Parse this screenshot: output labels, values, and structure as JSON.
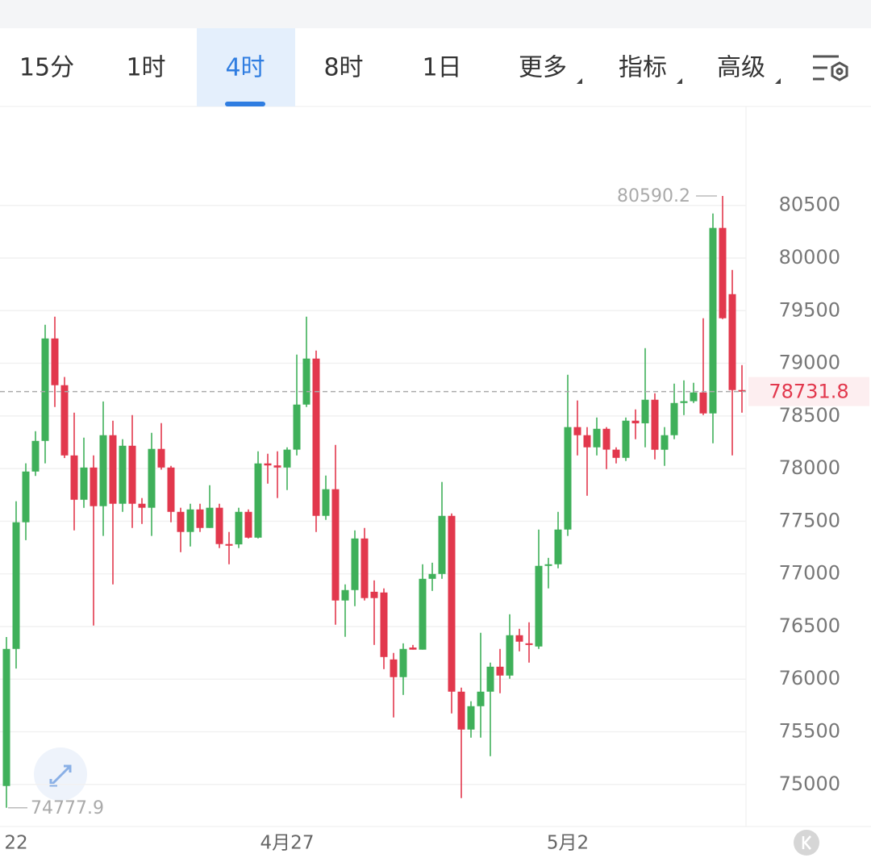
{
  "tabs": [
    "15分",
    "1时",
    "4时",
    "8时",
    "1日",
    "更多",
    "指标",
    "高级"
  ],
  "selected_tab": 2,
  "chart_data": {
    "type": "candlestick",
    "categories": [
      null,
      "22",
      null,
      null,
      null,
      null,
      null,
      null,
      null,
      null,
      null,
      null,
      null,
      null,
      null,
      null,
      null,
      null,
      null,
      null,
      null,
      null,
      null,
      null,
      null,
      null,
      null,
      null,
      null,
      "4月27",
      null,
      null,
      null,
      null,
      null,
      null,
      null,
      null,
      null,
      null,
      null,
      null,
      null,
      null,
      null,
      null,
      null,
      null,
      null,
      null,
      null,
      null,
      null,
      null,
      null,
      null,
      null,
      null,
      "5月2",
      null,
      null,
      null,
      null,
      null,
      null,
      null,
      null,
      null,
      null,
      null,
      null,
      null,
      null,
      null,
      null,
      null,
      null
    ],
    "open": [
      74985,
      76287,
      77490,
      77972,
      78263,
      79236,
      78792,
      78125,
      77704,
      78010,
      77643,
      78317,
      77666,
      78217,
      77666,
      77628,
      78187,
      78010,
      77589,
      77398,
      77612,
      77436,
      77628,
      77283,
      77280,
      77589,
      77344,
      78049,
      78030,
      78010,
      78180,
      78608,
      79045,
      77551,
      77804,
      76747,
      76846,
      77336,
      76830,
      76823,
      76187,
      76019,
      76300,
      76280,
      76953,
      76999,
      77551,
      75881,
      75521,
      75743,
      75881,
      76118,
      76034,
      76417,
      76340,
      76310,
      77076,
      77091,
      77421,
      78394,
      78317,
      78202,
      78378,
      78180,
      78102,
      78455,
      78430,
      78654,
      78179,
      78317,
      78623,
      78640,
      78723,
      78524,
      80286,
      79657,
      78746
    ],
    "high": [
      76400,
      77690,
      78050,
      78355,
      79366,
      79443,
      78870,
      78531,
      78294,
      78125,
      78638,
      78455,
      78279,
      78508,
      77720,
      78340,
      78432,
      78026,
      77628,
      77666,
      77666,
      77842,
      77666,
      77398,
      77628,
      77612,
      78164,
      78141,
      78164,
      78202,
      79083,
      79443,
      79121,
      77934,
      78225,
      76900,
      77413,
      77436,
      76938,
      76862,
      76249,
      76340,
      76325,
      77091,
      77106,
      77873,
      77574,
      75919,
      75790,
      76440,
      76157,
      76287,
      76616,
      76478,
      76540,
      77421,
      77152,
      77589,
      78891,
      78647,
      78394,
      78485,
      78394,
      78202,
      78485,
      78562,
      79144,
      78715,
      78394,
      78807,
      78838,
      78815,
      79428,
      80423,
      80590.2,
      79887,
      78983
    ],
    "low": [
      74777.9,
      76100,
      77320,
      77930,
      78050,
      78585,
      78100,
      77413,
      77627,
      76509,
      77360,
      76900,
      77589,
      77436,
      77474,
      77360,
      77990,
      77490,
      77206,
      77260,
      77398,
      77436,
      77245,
      77091,
      77245,
      77336,
      77336,
      77857,
      77720,
      77796,
      78125,
      78585,
      77398,
      77513,
      76517,
      76402,
      76693,
      76747,
      76325,
      76095,
      75636,
      75850,
      76280,
      76280,
      76838,
      76953,
      75674,
      74870,
      75444,
      75444,
      75268,
      75866,
      76004,
      76264,
      76157,
      76287,
      76862,
      77053,
      77360,
      78125,
      77742,
      78125,
      77995,
      78049,
      78072,
      78279,
      78202,
      78087,
      78026,
      78279,
      78508,
      78623,
      78508,
      78240,
      79420,
      78125,
      78531
    ],
    "close": [
      76287,
      77490,
      77972,
      78263,
      79236,
      78792,
      78125,
      77704,
      78010,
      77643,
      78317,
      77666,
      78217,
      77666,
      77628,
      78187,
      78010,
      77589,
      77398,
      77612,
      77436,
      77628,
      77283,
      77280,
      77589,
      77344,
      78049,
      78030,
      78010,
      78180,
      78608,
      79045,
      77551,
      77804,
      76747,
      76846,
      77336,
      76770,
      76770,
      76210,
      76019,
      76287,
      76280,
      76953,
      76999,
      77551,
      75881,
      75521,
      75743,
      75881,
      76118,
      76034,
      76417,
      76356,
      76330,
      77076,
      77091,
      77421,
      78394,
      78317,
      78202,
      78378,
      78180,
      78102,
      78455,
      78430,
      78654,
      78179,
      78317,
      78623,
      78640,
      78723,
      78524,
      80286,
      79428,
      78746,
      78731.8
    ],
    "up_color": "#3fb05a",
    "down_color": "#e2384d",
    "ylim": [
      74600,
      81440
    ],
    "yticks": [
      75000,
      75500,
      76000,
      76500,
      77000,
      77500,
      78000,
      78500,
      79000,
      79500,
      80000,
      80500
    ],
    "grid": true
  }
}
